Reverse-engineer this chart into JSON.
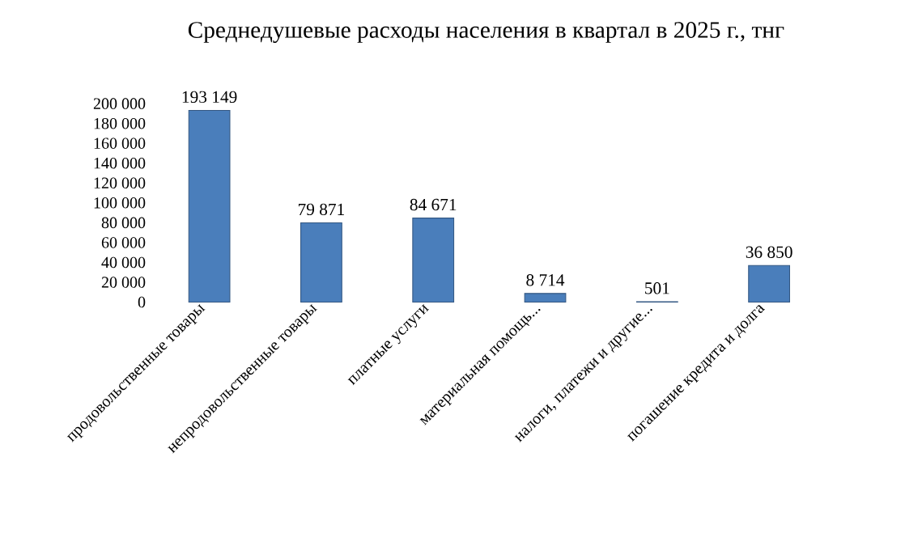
{
  "chart_data": {
    "type": "bar",
    "title": "Среднедушевые расходы населения в квартал в 2025 г., тнг",
    "categories": [
      "продовольственные товары",
      "непродовольственные товары",
      "платные услуги",
      "материальная помощь...",
      "налоги, платежи и другие...",
      "погашение кредита и долга"
    ],
    "values": [
      193149,
      79871,
      84671,
      8714,
      501,
      36850
    ],
    "value_labels": [
      "193 149",
      "79 871",
      "84 671",
      "8 714",
      "501",
      "36 850"
    ],
    "color": "#4a7ebb",
    "ylim": [
      0,
      200000
    ],
    "yticks": [
      {
        "value": 0,
        "label": "0"
      },
      {
        "value": 20000,
        "label": "20 000"
      },
      {
        "value": 40000,
        "label": "40 000"
      },
      {
        "value": 60000,
        "label": "60 000"
      },
      {
        "value": 80000,
        "label": "80 000"
      },
      {
        "value": 100000,
        "label": "100 000"
      },
      {
        "value": 120000,
        "label": "120 000"
      },
      {
        "value": 140000,
        "label": "140 000"
      },
      {
        "value": 160000,
        "label": "160 000"
      },
      {
        "value": 180000,
        "label": "180 000"
      },
      {
        "value": 200000,
        "label": "200 000"
      }
    ]
  }
}
